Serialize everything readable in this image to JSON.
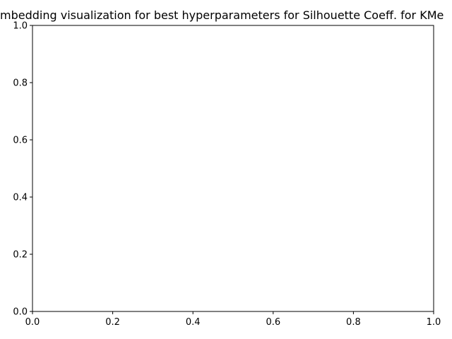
{
  "chart_data": {
    "type": "scatter",
    "title": "mbedding visualization for best hyperparameters for Silhouette Coeff. for KMe",
    "xlabel": "",
    "ylabel": "",
    "xlim": [
      0.0,
      1.0
    ],
    "ylim": [
      0.0,
      1.0
    ],
    "x_ticks": [
      "0.0",
      "0.2",
      "0.4",
      "0.6",
      "0.8",
      "1.0"
    ],
    "y_ticks": [
      "0.0",
      "0.2",
      "0.4",
      "0.6",
      "0.8",
      "1.0"
    ],
    "grid": false,
    "legend": "none",
    "series": []
  }
}
